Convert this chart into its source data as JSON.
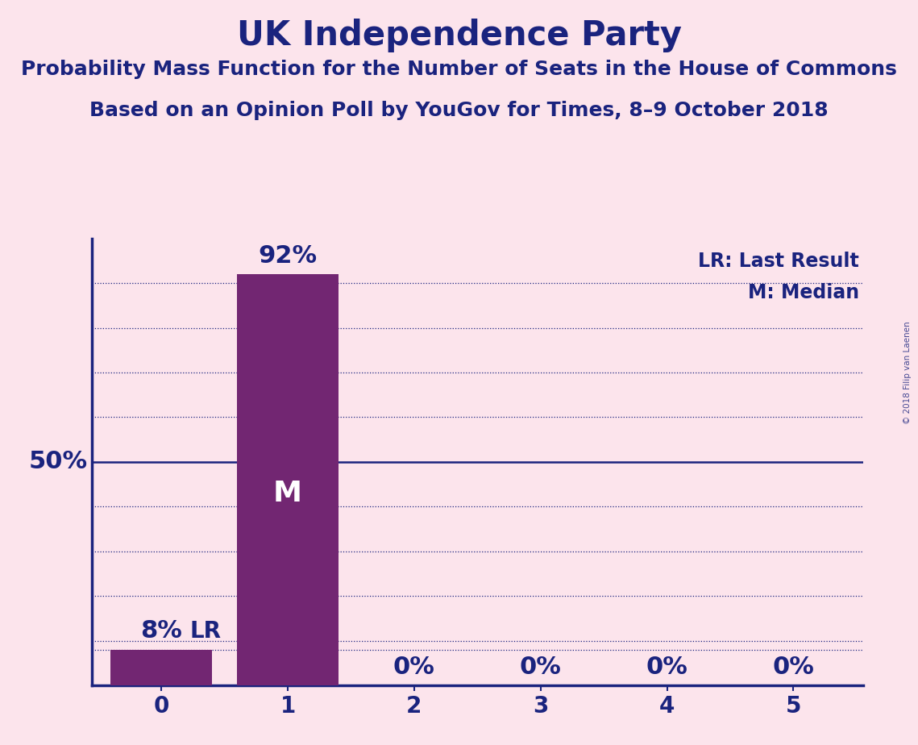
{
  "title": "UK Independence Party",
  "subtitle1": "Probability Mass Function for the Number of Seats in the House of Commons",
  "subtitle2": "Based on an Opinion Poll by YouGov for Times, 8–9 October 2018",
  "watermark": "© 2018 Filip van Laenen",
  "categories": [
    0,
    1,
    2,
    3,
    4,
    5
  ],
  "values": [
    8,
    92,
    0,
    0,
    0,
    0
  ],
  "bar_color": "#722672",
  "background_color": "#fce4ec",
  "text_color": "#1a237e",
  "median_seat": 1,
  "last_result_seat": 0,
  "last_result_value": 8,
  "median_line_value": 50,
  "legend_lr": "LR: Last Result",
  "legend_m": "M: Median",
  "ylabel_50": "50%",
  "grid_color": "#1a237e",
  "axis_color": "#1a237e",
  "title_fontsize": 30,
  "subtitle_fontsize": 18,
  "bar_label_fontsize": 22,
  "tick_fontsize": 20,
  "legend_fontsize": 17,
  "marker_fontsize": 26,
  "ylabel_fontsize": 22,
  "ylim": [
    0,
    100
  ],
  "xlim_min": -0.55,
  "xlim_max": 5.55
}
